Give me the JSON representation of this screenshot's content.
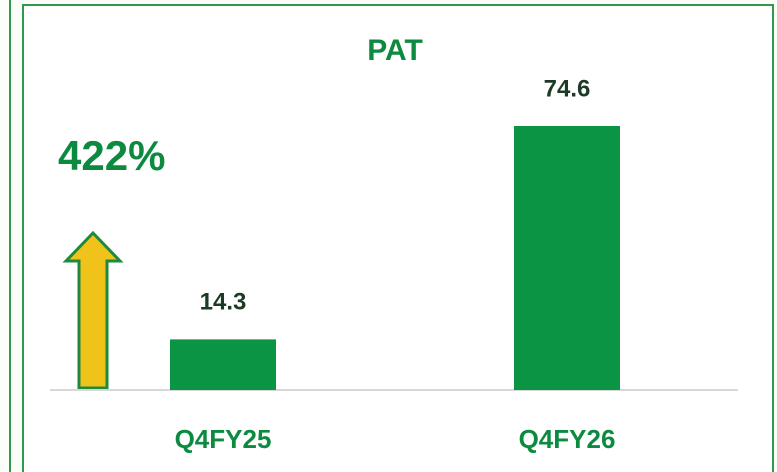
{
  "chart_data": {
    "type": "bar",
    "title": "PAT",
    "annotation": "422%",
    "categories": [
      "Q4FY25",
      "Q4FY26"
    ],
    "values": [
      14.3,
      74.6
    ],
    "color": "#0a9444"
  }
}
